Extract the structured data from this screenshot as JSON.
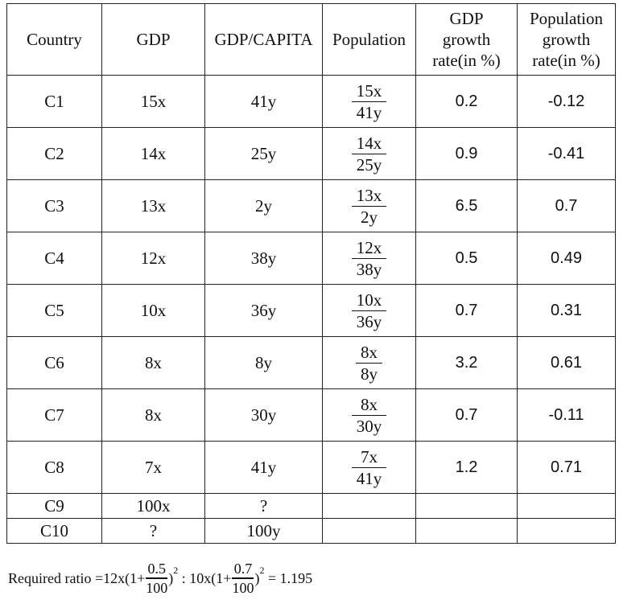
{
  "table": {
    "headers": {
      "country": "Country",
      "gdp": "GDP",
      "gdp_capita": "GDP/CAPITA",
      "population": "Population",
      "gdp_growth": [
        "GDP",
        "growth",
        "rate(in %)"
      ],
      "pop_growth": [
        "Population",
        "growth",
        "rate(in %)"
      ]
    },
    "rows": [
      {
        "country": "C1",
        "gdp": "15x",
        "gdp_capita": "41y",
        "pop_num": "15x",
        "pop_den": "41y",
        "gdp_growth": "0.2",
        "pop_growth": "-0.12"
      },
      {
        "country": "C2",
        "gdp": "14x",
        "gdp_capita": "25y",
        "pop_num": "14x",
        "pop_den": "25y",
        "gdp_growth": "0.9",
        "pop_growth": "-0.41"
      },
      {
        "country": "C3",
        "gdp": "13x",
        "gdp_capita": "2y",
        "pop_num": "13x",
        "pop_den": "2y",
        "gdp_growth": "6.5",
        "pop_growth": "0.7"
      },
      {
        "country": "C4",
        "gdp": "12x",
        "gdp_capita": "38y",
        "pop_num": "12x",
        "pop_den": "38y",
        "gdp_growth": "0.5",
        "pop_growth": "0.49"
      },
      {
        "country": "C5",
        "gdp": "10x",
        "gdp_capita": "36y",
        "pop_num": "10x",
        "pop_den": "36y",
        "gdp_growth": "0.7",
        "pop_growth": "0.31"
      },
      {
        "country": "C6",
        "gdp": "8x",
        "gdp_capita": "8y",
        "pop_num": "8x",
        "pop_den": "8y",
        "gdp_growth": "3.2",
        "pop_growth": "0.61"
      },
      {
        "country": "C7",
        "gdp": "8x",
        "gdp_capita": "30y",
        "pop_num": "8x",
        "pop_den": "30y",
        "gdp_growth": "0.7",
        "pop_growth": "-0.11"
      },
      {
        "country": "C8",
        "gdp": "7x",
        "gdp_capita": "41y",
        "pop_num": "7x",
        "pop_den": "41y",
        "gdp_growth": "1.2",
        "pop_growth": "0.71"
      }
    ],
    "small_rows": [
      {
        "country": "C9",
        "gdp": "100x",
        "gdp_capita": "?"
      },
      {
        "country": "C10",
        "gdp": "?",
        "gdp_capita": "100y"
      }
    ]
  },
  "formula": {
    "prefix": "Required ratio = ",
    "term1_coef": "12x(1+",
    "term1_num": "0.5",
    "term1_den": "100",
    "close1": ")",
    "exp1": "2",
    "separator": " : ",
    "term2_coef": "10x(1+",
    "term2_num": "0.7",
    "term2_den": "100",
    "close2": ")",
    "exp2": "2",
    "result": " = 1.195"
  }
}
